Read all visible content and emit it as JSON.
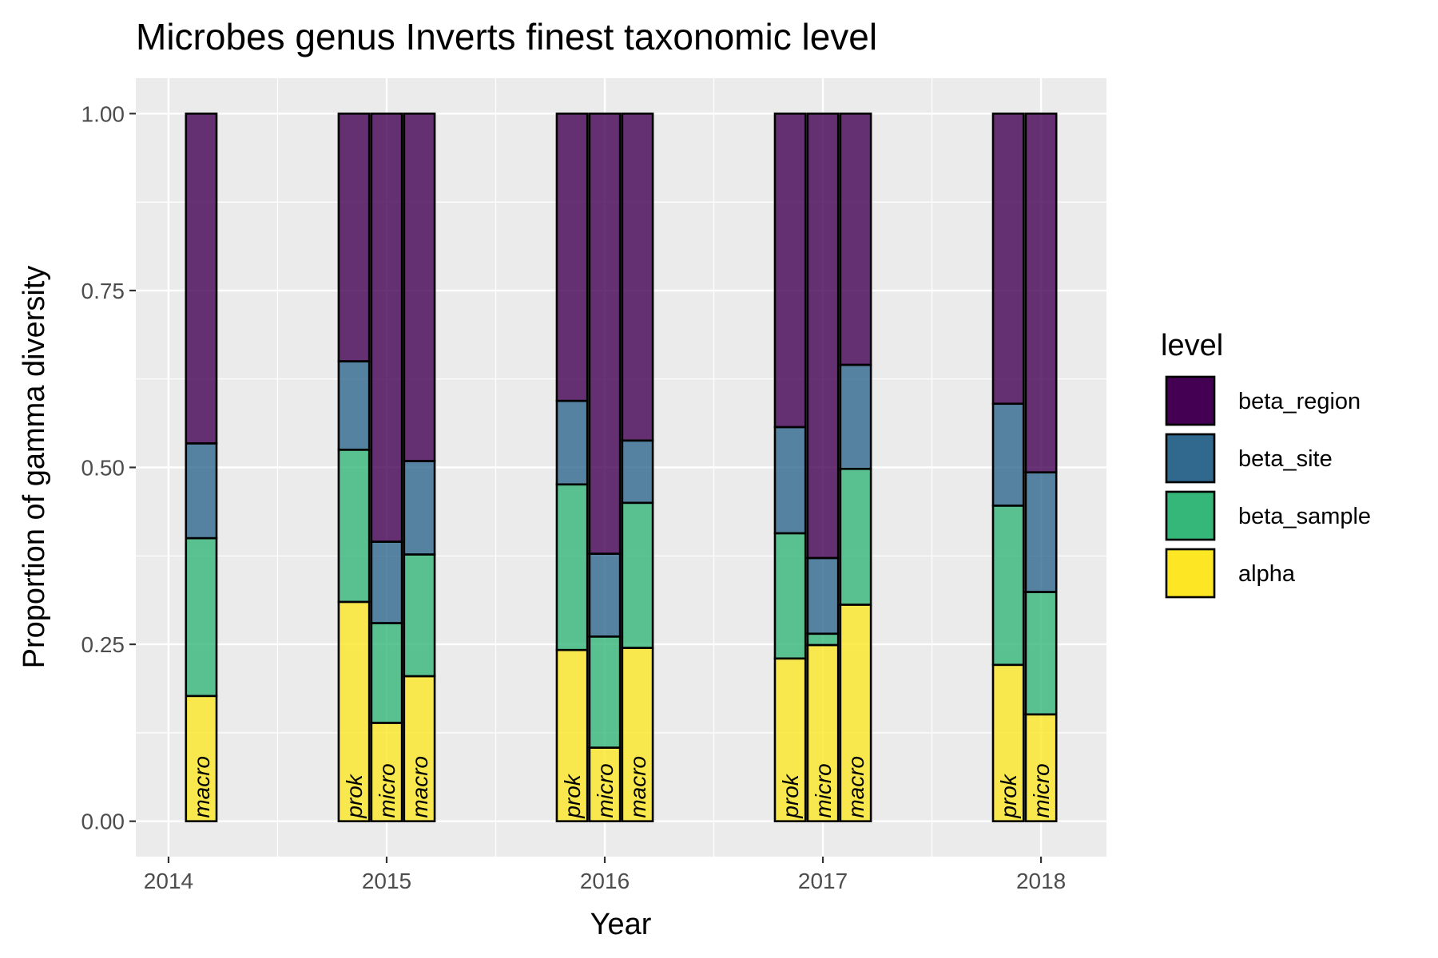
{
  "chart_data": {
    "type": "bar",
    "title": "Microbes genus Inverts finest taxonomic level",
    "xlabel": "Year",
    "ylabel": "Proportion of gamma diversity",
    "x_ticks": [
      "2014",
      "2015",
      "2016",
      "2017",
      "2018"
    ],
    "y_ticks": [
      "0.00",
      "0.25",
      "0.50",
      "0.75",
      "1.00"
    ],
    "ylim": [
      -0.05,
      1.05
    ],
    "xlim": [
      2013.85,
      2018.3
    ],
    "grid": true,
    "stacked": true,
    "legend": {
      "title": "level",
      "placement": "right",
      "entries": [
        {
          "name": "beta_region",
          "color": "#440154"
        },
        {
          "name": "beta_site",
          "color": "#31688E"
        },
        {
          "name": "beta_sample",
          "color": "#35B779"
        },
        {
          "name": "alpha",
          "color": "#FDE725"
        }
      ]
    },
    "bar_fill_opacity": 0.8,
    "stack_order_bottom_to_top": [
      "alpha",
      "beta_sample",
      "beta_site",
      "beta_region"
    ],
    "groups": [
      {
        "x": 2014.15,
        "label": "macro",
        "alpha": 0.177,
        "beta_sample": 0.223,
        "beta_site": 0.134,
        "beta_region": 0.466
      },
      {
        "x": 2014.85,
        "label": "prok",
        "alpha": 0.31,
        "beta_sample": 0.215,
        "beta_site": 0.125,
        "beta_region": 0.35
      },
      {
        "x": 2015.0,
        "label": "micro",
        "alpha": 0.139,
        "beta_sample": 0.141,
        "beta_site": 0.115,
        "beta_region": 0.605
      },
      {
        "x": 2015.15,
        "label": "macro",
        "alpha": 0.205,
        "beta_sample": 0.172,
        "beta_site": 0.132,
        "beta_region": 0.491
      },
      {
        "x": 2015.85,
        "label": "prok",
        "alpha": 0.242,
        "beta_sample": 0.234,
        "beta_site": 0.118,
        "beta_region": 0.406
      },
      {
        "x": 2016.0,
        "label": "micro",
        "alpha": 0.104,
        "beta_sample": 0.157,
        "beta_site": 0.117,
        "beta_region": 0.622
      },
      {
        "x": 2016.15,
        "label": "macro",
        "alpha": 0.245,
        "beta_sample": 0.205,
        "beta_site": 0.088,
        "beta_region": 0.462
      },
      {
        "x": 2016.85,
        "label": "prok",
        "alpha": 0.23,
        "beta_sample": 0.177,
        "beta_site": 0.15,
        "beta_region": 0.443
      },
      {
        "x": 2017.0,
        "label": "micro",
        "alpha": 0.249,
        "beta_sample": 0.016,
        "beta_site": 0.107,
        "beta_region": 0.628
      },
      {
        "x": 2017.15,
        "label": "macro",
        "alpha": 0.306,
        "beta_sample": 0.192,
        "beta_site": 0.147,
        "beta_region": 0.355
      },
      {
        "x": 2017.85,
        "label": "prok",
        "alpha": 0.221,
        "beta_sample": 0.225,
        "beta_site": 0.144,
        "beta_region": 0.41
      },
      {
        "x": 2018.0,
        "label": "micro",
        "alpha": 0.151,
        "beta_sample": 0.173,
        "beta_site": 0.169,
        "beta_region": 0.507
      }
    ]
  }
}
